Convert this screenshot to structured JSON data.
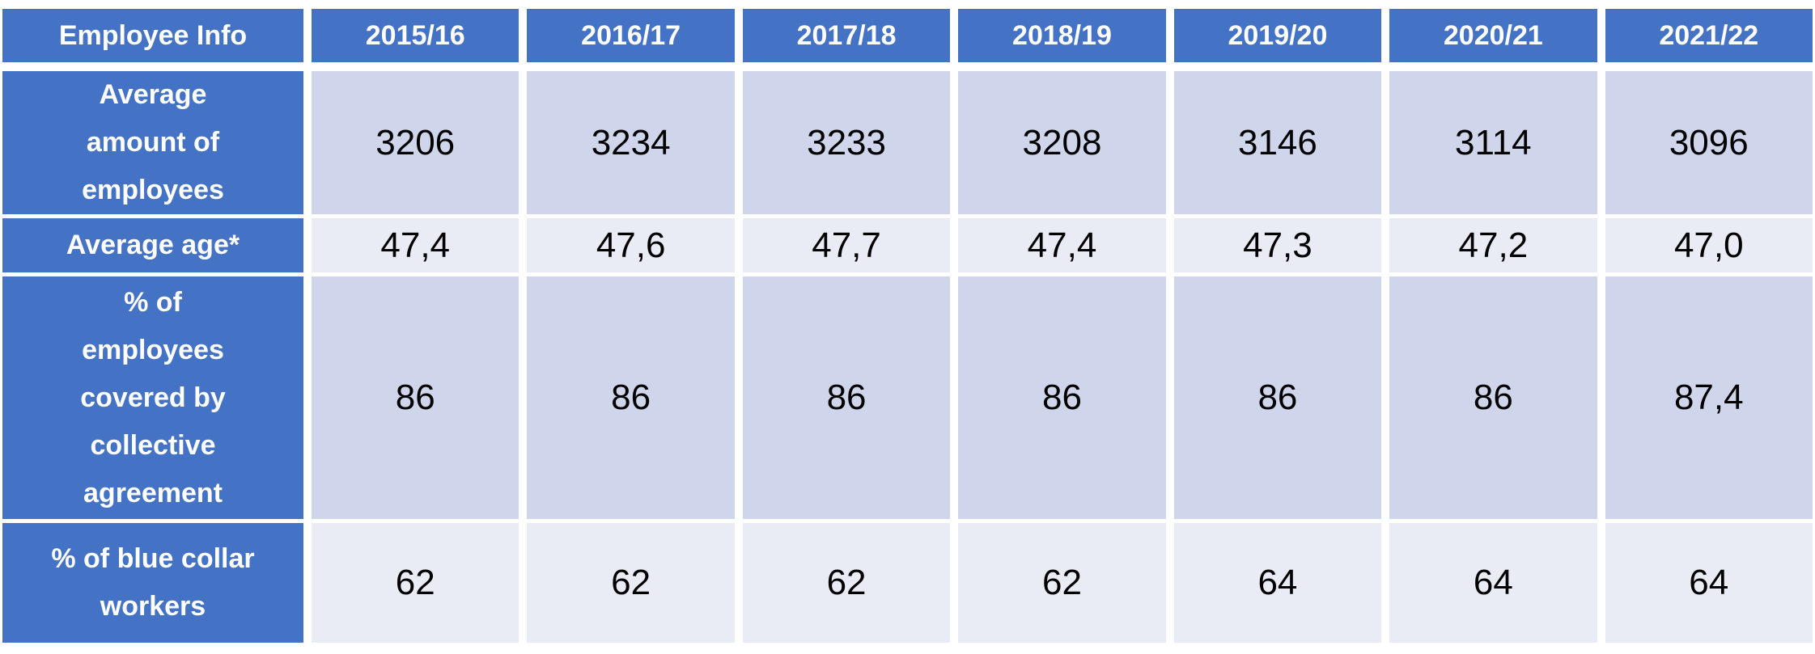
{
  "colors": {
    "header_blue": "#4472C4",
    "band_dark": "#CFD5EA",
    "band_light": "#E9EBF5",
    "gap_white": "#FFFFFF",
    "header_text": "#FFFFFF",
    "data_text": "#000000"
  },
  "table": {
    "header": [
      "Employee Info",
      "2015/16",
      "2016/17",
      "2017/18",
      "2018/19",
      "2019/20",
      "2020/21",
      "2021/22"
    ],
    "rows": [
      {
        "label": "Average\namount of\nemployees",
        "values": [
          "3206",
          "3234",
          "3233",
          "3208",
          "3146",
          "3114",
          "3096"
        ]
      },
      {
        "label": "Average age*",
        "values": [
          "47,4",
          "47,6",
          "47,7",
          "47,4",
          "47,3",
          "47,2",
          "47,0"
        ]
      },
      {
        "label": "% of\nemployees\ncovered by\ncollective\nagreement",
        "values": [
          "86",
          "86",
          "86",
          "86",
          "86",
          "86",
          "87,4"
        ]
      },
      {
        "label": "% of blue collar\nworkers",
        "values": [
          "62",
          "62",
          "62",
          "62",
          "64",
          "64",
          "64"
        ]
      }
    ]
  },
  "chart_data": {
    "type": "table",
    "title": "Employee Info",
    "categories": [
      "2015/16",
      "2016/17",
      "2017/18",
      "2018/19",
      "2019/20",
      "2020/21",
      "2021/22"
    ],
    "series": [
      {
        "name": "Average amount of employees",
        "values": [
          3206,
          3234,
          3233,
          3208,
          3146,
          3114,
          3096
        ]
      },
      {
        "name": "Average age*",
        "values": [
          47.4,
          47.6,
          47.7,
          47.4,
          47.3,
          47.2,
          47.0
        ]
      },
      {
        "name": "% of employees covered by collective agreement",
        "values": [
          86,
          86,
          86,
          86,
          86,
          86,
          87.4
        ]
      },
      {
        "name": "% of blue collar workers",
        "values": [
          62,
          62,
          62,
          62,
          64,
          64,
          64
        ]
      }
    ],
    "layout": {
      "header_row": true,
      "header_column": true,
      "banded_rows": true,
      "decimal_separator": "comma"
    }
  }
}
